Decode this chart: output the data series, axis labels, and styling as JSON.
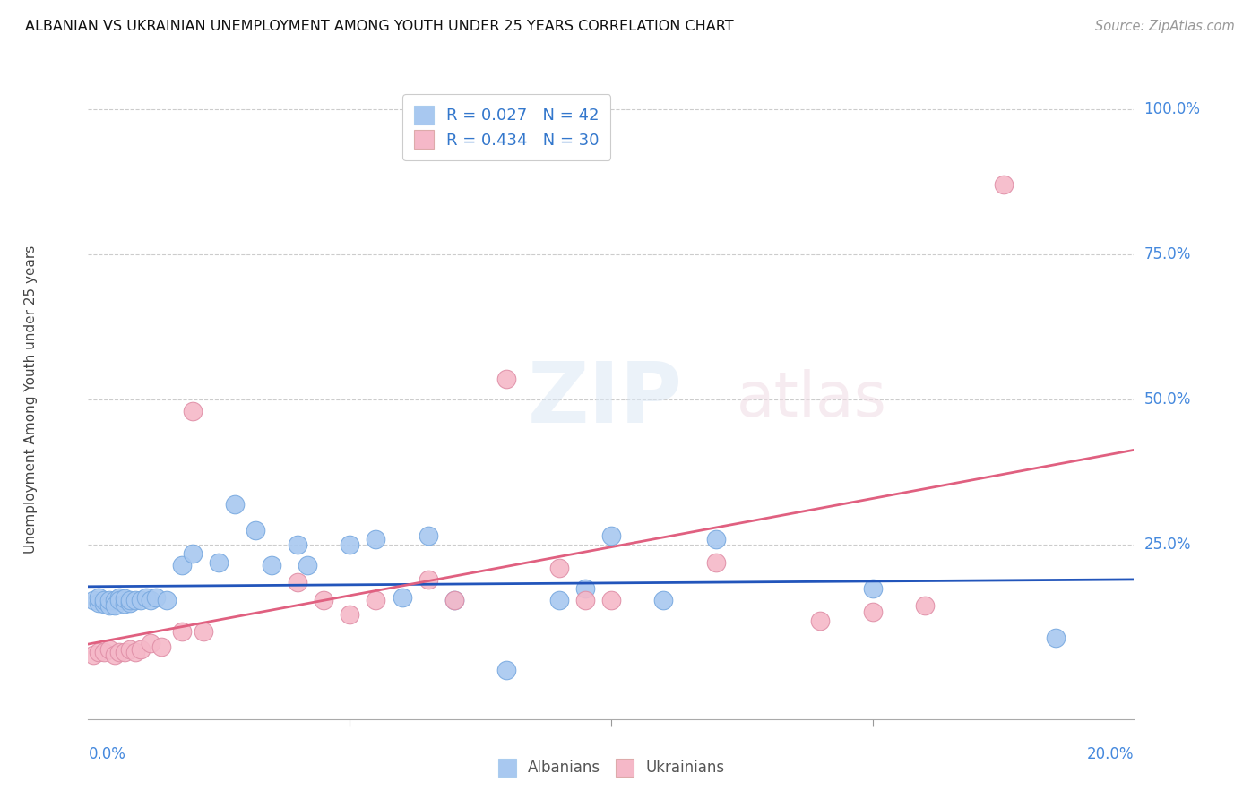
{
  "title": "ALBANIAN VS UKRAINIAN UNEMPLOYMENT AMONG YOUTH UNDER 25 YEARS CORRELATION CHART",
  "source": "Source: ZipAtlas.com",
  "ylabel": "Unemployment Among Youth under 25 years",
  "xmin": 0.0,
  "xmax": 0.2,
  "ymin": -0.05,
  "ymax": 1.05,
  "legend_albanian": "R = 0.027   N = 42",
  "legend_ukrainian": "R = 0.434   N = 30",
  "albanian_color": "#a8c8f0",
  "ukrainian_color": "#f5b8c8",
  "albanian_line_color": "#2255bb",
  "ukrainian_line_color": "#e06080",
  "watermark_zip": "ZIP",
  "watermark_atlas": "atlas",
  "albanian_x": [
    0.001,
    0.002,
    0.002,
    0.003,
    0.003,
    0.004,
    0.004,
    0.005,
    0.005,
    0.006,
    0.006,
    0.007,
    0.007,
    0.008,
    0.008,
    0.009,
    0.01,
    0.011,
    0.012,
    0.013,
    0.015,
    0.018,
    0.02,
    0.025,
    0.028,
    0.032,
    0.035,
    0.04,
    0.042,
    0.05,
    0.055,
    0.06,
    0.065,
    0.07,
    0.08,
    0.09,
    0.095,
    0.1,
    0.11,
    0.12,
    0.15,
    0.185
  ],
  "albanian_y": [
    0.155,
    0.15,
    0.16,
    0.148,
    0.155,
    0.145,
    0.155,
    0.155,
    0.145,
    0.16,
    0.155,
    0.148,
    0.158,
    0.15,
    0.155,
    0.155,
    0.155,
    0.16,
    0.155,
    0.16,
    0.155,
    0.215,
    0.235,
    0.22,
    0.32,
    0.275,
    0.215,
    0.25,
    0.215,
    0.25,
    0.26,
    0.16,
    0.265,
    0.155,
    0.035,
    0.155,
    0.175,
    0.265,
    0.155,
    0.26,
    0.175,
    0.09
  ],
  "ukrainian_x": [
    0.001,
    0.002,
    0.003,
    0.004,
    0.005,
    0.006,
    0.007,
    0.008,
    0.009,
    0.01,
    0.012,
    0.014,
    0.018,
    0.02,
    0.022,
    0.04,
    0.045,
    0.05,
    0.055,
    0.065,
    0.07,
    0.08,
    0.09,
    0.095,
    0.1,
    0.12,
    0.14,
    0.15,
    0.16,
    0.175
  ],
  "ukrainian_y": [
    0.06,
    0.065,
    0.065,
    0.07,
    0.06,
    0.065,
    0.065,
    0.07,
    0.065,
    0.07,
    0.08,
    0.075,
    0.1,
    0.48,
    0.1,
    0.185,
    0.155,
    0.13,
    0.155,
    0.19,
    0.155,
    0.535,
    0.21,
    0.155,
    0.155,
    0.22,
    0.12,
    0.135,
    0.145,
    0.87
  ]
}
